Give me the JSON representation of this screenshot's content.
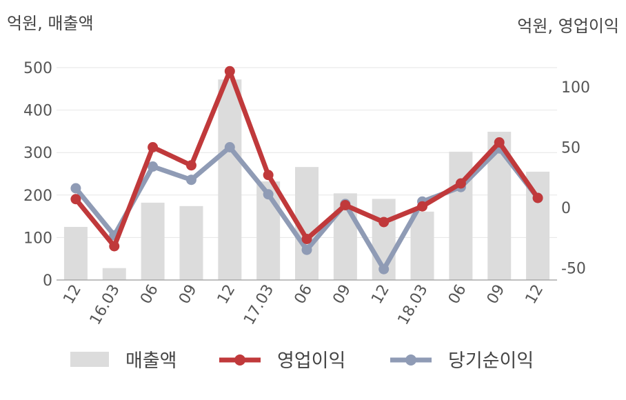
{
  "units": {
    "left": "억원, 매출액",
    "right": "억원, 영업이익"
  },
  "colors": {
    "bar": "#dcdcdc",
    "operating": "#c0393b",
    "net": "#8f9bb5",
    "grid": "#e6e6e6",
    "axis": "#aaaaaa"
  },
  "chart_data": {
    "type": "bar+line",
    "categories": [
      "12",
      "16.03",
      "06",
      "09",
      "12",
      "17.03",
      "06",
      "09",
      "12",
      "18.03",
      "06",
      "09",
      "12"
    ],
    "left_axis": {
      "ticks": [
        0,
        100,
        200,
        300,
        400,
        500
      ],
      "ylim": [
        0,
        500
      ]
    },
    "right_axis": {
      "ticks": [
        -50,
        0,
        50,
        100
      ],
      "ylim": [
        -60,
        116
      ]
    },
    "series": [
      {
        "name": "매출액",
        "type": "bar",
        "axis": "left",
        "values": [
          125,
          28,
          182,
          174,
          472,
          232,
          266,
          204,
          191,
          161,
          302,
          349,
          255
        ]
      },
      {
        "name": "영업이익",
        "type": "line",
        "axis": "right",
        "values": [
          7,
          -32,
          50,
          35,
          113,
          27,
          -26,
          2,
          -12,
          1,
          20,
          54,
          8
        ]
      },
      {
        "name": "당기순이익",
        "type": "line",
        "axis": "right",
        "values": [
          16,
          -23,
          34,
          23,
          50,
          11,
          -35,
          3,
          -51,
          5,
          17,
          49,
          8
        ]
      }
    ],
    "legend": [
      "매출액",
      "영업이익",
      "당기순이익"
    ],
    "legend_position": "bottom"
  }
}
